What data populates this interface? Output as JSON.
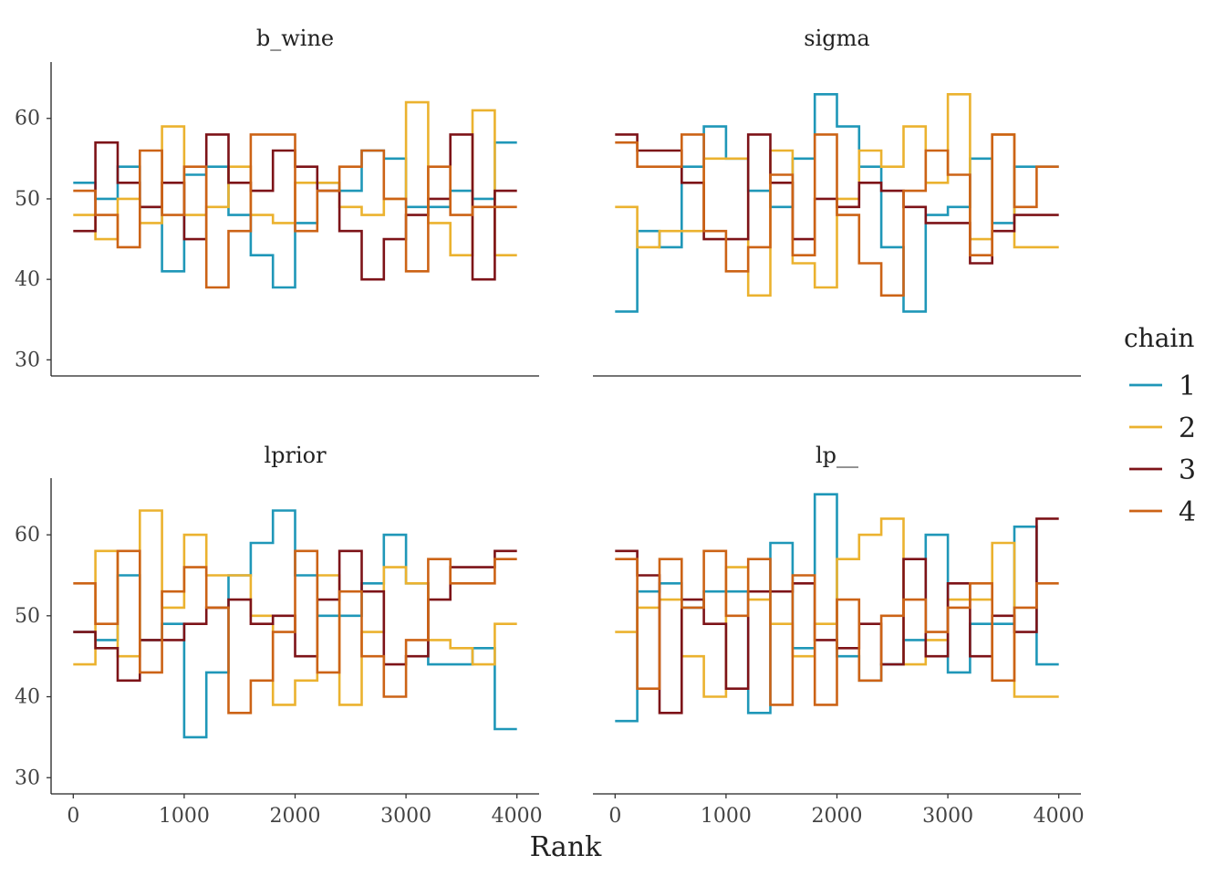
{
  "chart_data": {
    "type": "line",
    "xlabel": "Rank",
    "ylabel": "",
    "grid": false,
    "legend_position": "right",
    "legend_title": "chain",
    "xlim": [
      -200,
      4200
    ],
    "ylim": [
      28,
      67
    ],
    "x_ticks": [
      0,
      1000,
      2000,
      3000,
      4000
    ],
    "y_ticks": [
      30,
      40,
      50,
      60
    ],
    "x_tick_labels": [
      "0",
      "1000",
      "2000",
      "3000",
      "4000"
    ],
    "y_tick_labels": [
      "30",
      "40",
      "50",
      "60"
    ],
    "bin_edges": [
      0,
      200,
      400,
      600,
      800,
      1000,
      1200,
      1400,
      1600,
      1800,
      2000,
      2200,
      2400,
      2600,
      2800,
      3000,
      3200,
      3400,
      3600,
      3800,
      4000
    ],
    "series_styles": [
      {
        "name": "1",
        "color": "#1f97b8"
      },
      {
        "name": "2",
        "color": "#ebb22f"
      },
      {
        "name": "3",
        "color": "#7d1318"
      },
      {
        "name": "4",
        "color": "#cc6316"
      }
    ],
    "panels": [
      {
        "title": "b_wine",
        "series": [
          {
            "name": "1",
            "values": [
              52,
              50,
              54,
              49,
              41,
              53,
              54,
              48,
              43,
              39,
              47,
              52,
              51,
              56,
              55,
              49,
              49,
              51,
              50,
              57
            ]
          },
          {
            "name": "2",
            "values": [
              48,
              45,
              50,
              47,
              59,
              48,
              49,
              54,
              48,
              47,
              52,
              52,
              49,
              48,
              50,
              62,
              47,
              43,
              61,
              43
            ]
          },
          {
            "name": "3",
            "values": [
              46,
              57,
              52,
              49,
              52,
              45,
              58,
              52,
              51,
              56,
              54,
              51,
              46,
              40,
              45,
              48,
              50,
              58,
              40,
              51
            ]
          },
          {
            "name": "4",
            "values": [
              51,
              48,
              44,
              56,
              48,
              54,
              39,
              46,
              58,
              58,
              46,
              51,
              54,
              56,
              50,
              41,
              54,
              48,
              49,
              49
            ]
          }
        ]
      },
      {
        "title": "sigma",
        "series": [
          {
            "name": "1",
            "values": [
              36,
              46,
              44,
              54,
              59,
              55,
              51,
              49,
              55,
              63,
              59,
              54,
              44,
              36,
              48,
              49,
              55,
              47,
              54,
              54
            ]
          },
          {
            "name": "2",
            "values": [
              49,
              44,
              46,
              46,
              55,
              55,
              38,
              56,
              42,
              39,
              50,
              56,
              54,
              59,
              52,
              63,
              45,
              58,
              44,
              44
            ]
          },
          {
            "name": "3",
            "values": [
              58,
              56,
              56,
              52,
              45,
              45,
              58,
              52,
              45,
              50,
              49,
              52,
              51,
              49,
              47,
              47,
              42,
              46,
              48,
              48
            ]
          },
          {
            "name": "4",
            "values": [
              57,
              54,
              54,
              58,
              46,
              41,
              44,
              53,
              43,
              58,
              48,
              42,
              38,
              51,
              56,
              53,
              43,
              58,
              49,
              54
            ]
          }
        ]
      },
      {
        "title": "lprior",
        "series": [
          {
            "name": "1",
            "values": [
              48,
              47,
              55,
              47,
              49,
              35,
              43,
              55,
              59,
              63,
              55,
              50,
              50,
              54,
              60,
              54,
              44,
              44,
              46,
              36
            ]
          },
          {
            "name": "2",
            "values": [
              44,
              58,
              45,
              63,
              51,
              60,
              55,
              55,
              50,
              39,
              42,
              55,
              39,
              48,
              56,
              54,
              47,
              46,
              44,
              49
            ]
          },
          {
            "name": "3",
            "values": [
              48,
              46,
              42,
              47,
              47,
              49,
              51,
              52,
              49,
              50,
              45,
              52,
              58,
              53,
              44,
              45,
              52,
              56,
              56,
              58
            ]
          },
          {
            "name": "4",
            "values": [
              54,
              49,
              58,
              43,
              53,
              56,
              51,
              38,
              42,
              48,
              58,
              43,
              53,
              45,
              40,
              47,
              57,
              54,
              54,
              57
            ]
          }
        ]
      },
      {
        "title": "lp__",
        "series": [
          {
            "name": "1",
            "values": [
              37,
              53,
              54,
              51,
              53,
              53,
              38,
              59,
              46,
              65,
              45,
              42,
              44,
              47,
              60,
              43,
              49,
              49,
              61,
              44
            ]
          },
          {
            "name": "2",
            "values": [
              48,
              51,
              52,
              45,
              40,
              56,
              52,
              49,
              45,
              49,
              57,
              60,
              62,
              44,
              47,
              52,
              52,
              59,
              40,
              40
            ]
          },
          {
            "name": "3",
            "values": [
              58,
              55,
              38,
              52,
              49,
              41,
              53,
              53,
              54,
              47,
              46,
              49,
              44,
              57,
              45,
              54,
              45,
              50,
              48,
              62
            ]
          },
          {
            "name": "4",
            "values": [
              57,
              41,
              57,
              51,
              58,
              50,
              57,
              39,
              55,
              39,
              52,
              42,
              50,
              52,
              48,
              51,
              54,
              42,
              51,
              54
            ]
          }
        ]
      }
    ]
  }
}
